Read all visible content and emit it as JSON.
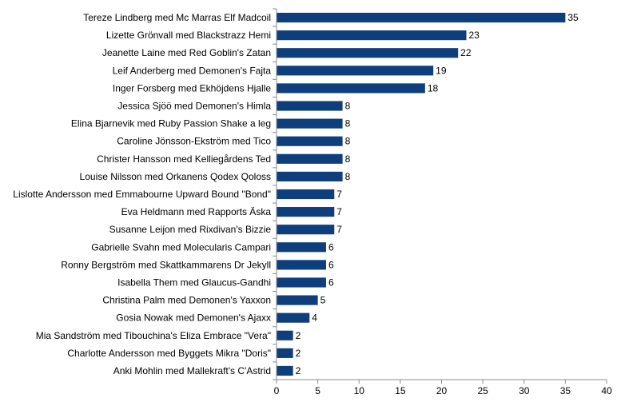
{
  "chart_data": {
    "type": "bar",
    "orientation": "horizontal",
    "categories": [
      "Tereze Lindberg med Mc Marras Elf Madcoil",
      "Lizette Grönvall med Blackstrazz Hemi",
      "Jeanette Laine med Red Goblin's Zatan",
      "Leif Anderberg med Demonen's Fajta",
      "Inger Forsberg med Ekhöjdens Hjalle",
      "Jessica Sjöö med Demonen's Himla",
      "Elina Bjarnevik med Ruby Passion Shake a leg",
      "Caroline Jönsson-Ekström med Tico",
      "Christer Hansson med Kelliegårdens Ted",
      "Louise Nilsson med Orkanens Qodex Qoloss",
      "Lislotte Andersson med Emmabourne Upward Bound \"Bond\"",
      "Eva Heldmann med Rapports Äska",
      "Susanne Leijon med Rixdivan's Bizzie",
      "Gabrielle Svahn med Molecularis Campari",
      "Ronny Bergström med Skattkammarens Dr Jekyll",
      "Isabella Them med Glaucus-Gandhi",
      "Christina Palm med Demonen's Yaxxon",
      "Gosia Nowak med Demonen's Ajaxx",
      "Mia Sandström med Tibouchina's Eliza Embrace \"Vera\"",
      "Charlotte Andersson med Byggets Mikra \"Doris\"",
      "Anki Mohlin med Mallekraft's C'Astrid"
    ],
    "values": [
      35,
      23,
      22,
      19,
      18,
      8,
      8,
      8,
      8,
      8,
      7,
      7,
      7,
      6,
      6,
      6,
      5,
      4,
      2,
      2,
      2
    ],
    "xlim": [
      0,
      40
    ],
    "xticks": [
      0,
      5,
      10,
      15,
      20,
      25,
      30,
      35,
      40
    ],
    "title": "",
    "xlabel": "",
    "ylabel": "",
    "grid": false,
    "legend": "none",
    "data_labels": true,
    "bar_color": "#0F3E7D",
    "axis_color": "#8C8C8C"
  }
}
